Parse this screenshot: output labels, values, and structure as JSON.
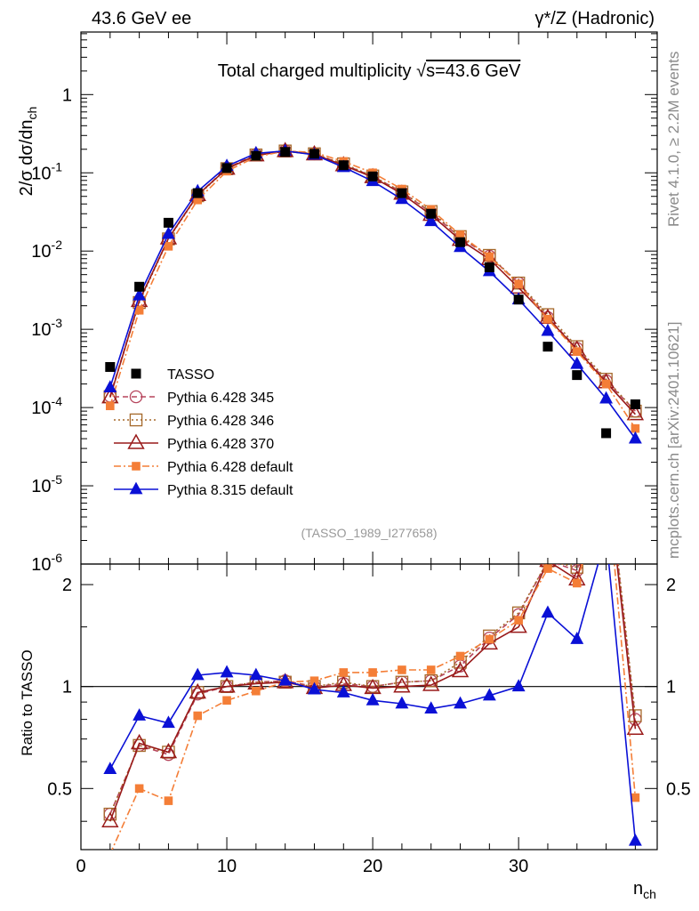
{
  "header": {
    "left_label": "43.6 GeV ee",
    "right_label": "γ*/Z (Hadronic)"
  },
  "side_labels": {
    "rivet": "Rivet 4.1.0, ≥ 2.2M events",
    "mcplots": "mcplots.cern.ch [arXiv:2401.10621]"
  },
  "chart_data": {
    "type": "line",
    "title_prefix": "Total charged multiplicity ",
    "title_sqrt": "√",
    "title_suffix": "s=43.6 GeV",
    "analysis_tag": "(TASSO_1989_I277658)",
    "xlabel_main": "n",
    "xlabel_sub": "ch",
    "ylabel_top_prefix": "2/σ  dσ/dn",
    "ylabel_top_sub": "ch",
    "ylabel_bottom": "Ratio to TASSO",
    "xlim": [
      0,
      39.5
    ],
    "ylim_top": [
      1e-06,
      6.3
    ],
    "ylim_ratio": [
      0.33,
      2.3
    ],
    "x_ticks": [
      "0",
      "10",
      "20",
      "30"
    ],
    "x_tick_values": [
      0,
      10,
      20,
      30
    ],
    "y_ticks_top": [
      "10",
      "10",
      "10",
      "10",
      "10",
      "10",
      "1"
    ],
    "y_ticks_top_exp": [
      "-6",
      "-5",
      "-4",
      "-3",
      "-2",
      "-1",
      ""
    ],
    "y_tick_values_top": [
      1e-06,
      1e-05,
      0.0001,
      0.001,
      0.01,
      0.1,
      1
    ],
    "y_ticks_ratio": [
      "0.5",
      "1",
      "2"
    ],
    "y_tick_values_ratio": [
      0.5,
      1,
      2
    ],
    "x": [
      2,
      4,
      6,
      8,
      10,
      12,
      14,
      16,
      18,
      20,
      22,
      24,
      26,
      28,
      30,
      32,
      34,
      36,
      38
    ],
    "data": {
      "name": "TASSO",
      "color": "#000000",
      "values": [
        0.00033,
        0.0035,
        0.023,
        0.055,
        0.115,
        0.165,
        0.185,
        0.175,
        0.125,
        0.09,
        0.055,
        0.03,
        0.013,
        0.0062,
        0.0024,
        0.0006,
        0.00026,
        4.7e-05,
        0.00011
      ]
    },
    "series": [
      {
        "name": "Pythia 6.428 345",
        "color": "#b6455c",
        "dash": "6,4",
        "marker": "open-circle",
        "values": [
          0.00014,
          0.0023,
          0.0145,
          0.052,
          0.115,
          0.171,
          0.192,
          0.175,
          0.128,
          0.09,
          0.057,
          0.031,
          0.0149,
          0.0086,
          0.0039,
          0.00141,
          0.00057,
          0.00022,
          9e-05
        ],
        "ratio": [
          0.42,
          0.67,
          0.63,
          0.95,
          1.0,
          1.03,
          1.04,
          1.0,
          1.02,
          1.0,
          1.03,
          1.04,
          1.15,
          1.39,
          1.63,
          2.35,
          2.2,
          4.7,
          0.8
        ]
      },
      {
        "name": "Pythia 6.428 346",
        "color": "#a5682a",
        "dash": "2,3",
        "marker": "open-square",
        "values": [
          0.000138,
          0.0022,
          0.0143,
          0.051,
          0.113,
          0.169,
          0.19,
          0.175,
          0.13,
          0.091,
          0.057,
          0.032,
          0.0153,
          0.0088,
          0.0039,
          0.00154,
          0.0006,
          0.00023,
          9e-05
        ],
        "ratio": [
          0.42,
          0.67,
          0.64,
          0.96,
          1.0,
          1.03,
          1.03,
          1.0,
          1.03,
          1.0,
          1.03,
          1.04,
          1.18,
          1.41,
          1.65,
          2.35,
          2.25,
          4.8,
          0.82
        ]
      },
      {
        "name": "Pythia 6.428 370",
        "color": "#991a1a",
        "dash": "",
        "marker": "open-triangle",
        "values": [
          0.000135,
          0.0023,
          0.0145,
          0.052,
          0.113,
          0.167,
          0.189,
          0.172,
          0.125,
          0.088,
          0.054,
          0.029,
          0.0139,
          0.0079,
          0.0034,
          0.0014,
          0.00055,
          0.00021,
          8.2e-05
        ],
        "ratio": [
          0.4,
          0.68,
          0.64,
          0.96,
          1.0,
          1.02,
          1.03,
          0.99,
          1.01,
          0.99,
          1.0,
          1.01,
          1.11,
          1.34,
          1.5,
          2.35,
          2.07,
          4.5,
          0.75
        ]
      },
      {
        "name": "Pythia 6.428 default",
        "color": "#f47e37",
        "dash": "8,3,2,3",
        "marker": "filled-square",
        "values": [
          0.000105,
          0.00175,
          0.0115,
          0.045,
          0.105,
          0.16,
          0.19,
          0.182,
          0.14,
          0.1,
          0.062,
          0.034,
          0.0161,
          0.0085,
          0.0038,
          0.00135,
          0.00052,
          0.0002,
          5.4e-05
        ],
        "ratio": [
          0.32,
          0.5,
          0.46,
          0.82,
          0.91,
          0.97,
          1.03,
          1.04,
          1.1,
          1.1,
          1.12,
          1.12,
          1.23,
          1.38,
          1.57,
          2.23,
          2.02,
          4.3,
          0.47
        ]
      },
      {
        "name": "Pythia 8.315 default",
        "color": "#0a10d6",
        "dash": "",
        "marker": "filled-triangle",
        "values": [
          0.00018,
          0.0027,
          0.0165,
          0.058,
          0.122,
          0.177,
          0.19,
          0.17,
          0.118,
          0.078,
          0.046,
          0.024,
          0.0112,
          0.0055,
          0.0024,
          0.00095,
          0.00036,
          0.00013,
          4e-05
        ],
        "ratio": [
          0.57,
          0.82,
          0.78,
          1.08,
          1.1,
          1.08,
          1.04,
          0.98,
          0.96,
          0.91,
          0.89,
          0.86,
          0.89,
          0.94,
          1.0,
          1.65,
          1.38,
          2.8,
          0.35
        ]
      }
    ]
  }
}
